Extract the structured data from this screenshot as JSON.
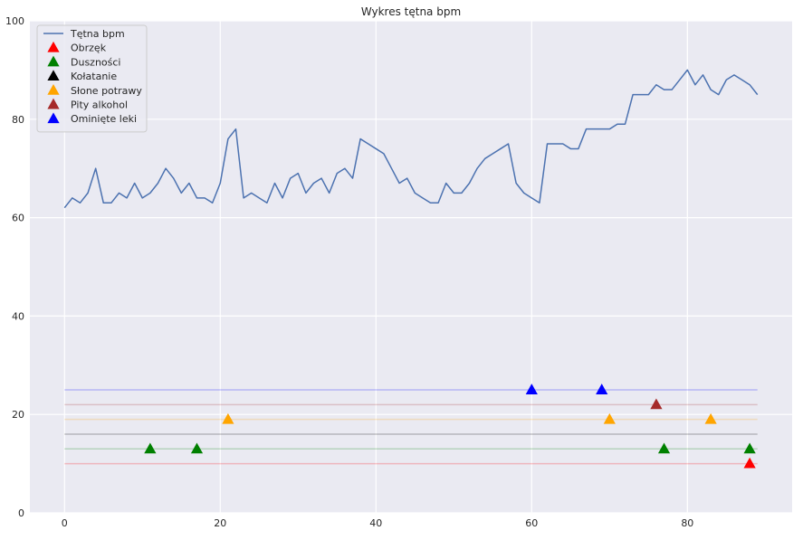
{
  "chart_data": {
    "type": "line",
    "title": "Wykres tętna bpm",
    "xlabel": "",
    "ylabel": "",
    "xlim": [
      -4.45,
      93.45
    ],
    "ylim": [
      0,
      100
    ],
    "x_ticks": [
      0,
      20,
      40,
      60,
      80
    ],
    "y_ticks": [
      0,
      20,
      40,
      60,
      80,
      100
    ],
    "grid": true,
    "legend_position": "top-left",
    "background_color": "#eaeaf2",
    "series": [
      {
        "name": "Tętna bpm",
        "color": "#4c72b0",
        "x": [
          0,
          1,
          2,
          3,
          4,
          5,
          6,
          7,
          8,
          9,
          10,
          11,
          12,
          13,
          14,
          15,
          16,
          17,
          18,
          19,
          20,
          21,
          22,
          23,
          24,
          25,
          26,
          27,
          28,
          29,
          30,
          31,
          32,
          33,
          34,
          35,
          36,
          37,
          38,
          39,
          40,
          41,
          42,
          43,
          44,
          45,
          46,
          47,
          48,
          49,
          50,
          51,
          52,
          53,
          54,
          55,
          56,
          57,
          58,
          59,
          60,
          61,
          62,
          63,
          64,
          65,
          66,
          67,
          68,
          69,
          70,
          71,
          72,
          73,
          74,
          75,
          76,
          77,
          78,
          79,
          80,
          81,
          82,
          83,
          84,
          85,
          86,
          87,
          88,
          89
        ],
        "values": [
          62,
          64,
          63,
          65,
          70,
          63,
          63,
          65,
          64,
          67,
          64,
          65,
          67,
          70,
          68,
          65,
          67,
          64,
          64,
          63,
          67,
          76,
          78,
          64,
          65,
          64,
          63,
          67,
          64,
          68,
          69,
          65,
          67,
          68,
          65,
          69,
          70,
          68,
          76,
          75,
          74,
          73,
          70,
          67,
          68,
          65,
          64,
          63,
          63,
          67,
          65,
          65,
          67,
          70,
          72,
          73,
          74,
          75,
          67,
          65,
          64,
          63,
          75,
          75,
          75,
          74,
          74,
          78,
          78,
          78,
          78,
          79,
          79,
          85,
          85,
          85,
          87,
          86,
          86,
          88,
          90,
          87,
          89,
          86,
          85,
          88,
          89,
          88,
          87,
          85
        ]
      }
    ],
    "events": [
      {
        "name": "Obrzęk",
        "color": "#ff0000",
        "line_y": 10,
        "x": [
          88
        ],
        "y": [
          10
        ]
      },
      {
        "name": "Duszności",
        "color": "#008000",
        "line_y": 13,
        "x": [
          11,
          17,
          77,
          88
        ],
        "y": [
          13,
          13,
          13,
          13
        ]
      },
      {
        "name": "Kołatanie",
        "color": "#000000",
        "line_y": 16,
        "x": [],
        "y": []
      },
      {
        "name": "Słone potrawy",
        "color": "#ffa500",
        "line_y": 19,
        "x": [
          21,
          70,
          83
        ],
        "y": [
          19,
          19,
          19
        ]
      },
      {
        "name": "Pity alkohol",
        "color": "#a52a2a",
        "line_y": 22,
        "x": [
          76
        ],
        "y": [
          22
        ]
      },
      {
        "name": "Ominięte leki",
        "color": "#0000ff",
        "line_y": 25,
        "x": [
          60,
          69
        ],
        "y": [
          25,
          25
        ]
      }
    ]
  }
}
